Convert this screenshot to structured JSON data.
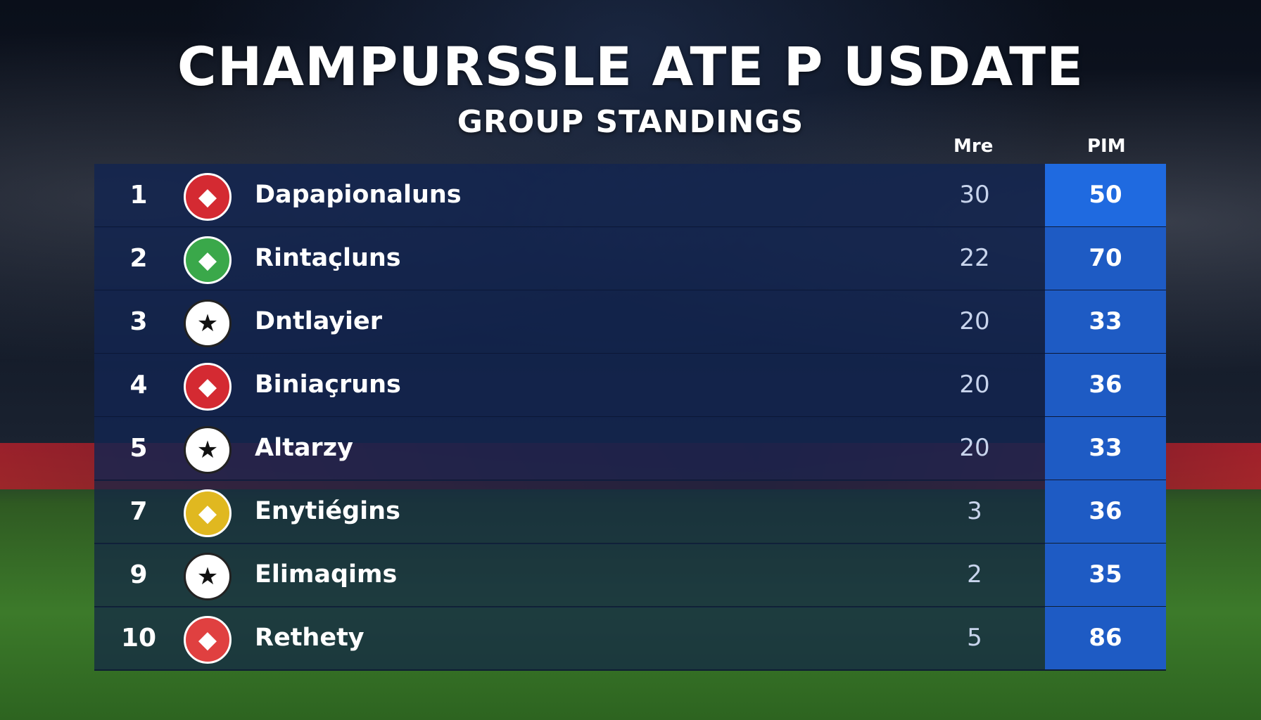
{
  "header": {
    "title": "CHAMPURSSLE ATE P USDATE",
    "subtitle": "GROUP STANDINGS"
  },
  "columns": {
    "mre": "Mre",
    "pim": "PIM"
  },
  "rows": [
    {
      "rank": "1",
      "name": "Dapapionaluns",
      "mre": "30",
      "pim": "50",
      "logo": "red-crest-icon",
      "color": "#d42a32"
    },
    {
      "rank": "2",
      "name": "Rintaçluns",
      "mre": "22",
      "pim": "70",
      "logo": "green-yellow-crest-icon",
      "color": "#3aa84a"
    },
    {
      "rank": "3",
      "name": "Dntlayier",
      "mre": "20",
      "pim": "33",
      "logo": "starball-icon",
      "color": "#ffffff"
    },
    {
      "rank": "4",
      "name": "Biniaçruns",
      "mre": "20",
      "pim": "36",
      "logo": "red-shield-icon",
      "color": "#d42a32"
    },
    {
      "rank": "5",
      "name": "Altarzy",
      "mre": "20",
      "pim": "33",
      "logo": "starball-icon",
      "color": "#ffffff"
    },
    {
      "rank": "7",
      "name": "Enytiégins",
      "mre": "3",
      "pim": "36",
      "logo": "yellow-crest-icon",
      "color": "#e0b820"
    },
    {
      "rank": "9",
      "name": "Elimaqims",
      "mre": "2",
      "pim": "35",
      "logo": "starball-icon",
      "color": "#ffffff"
    },
    {
      "rank": "10",
      "name": "Rethety",
      "mre": "5",
      "pim": "86",
      "logo": "red-white-crest-icon",
      "color": "#e04040"
    }
  ]
}
